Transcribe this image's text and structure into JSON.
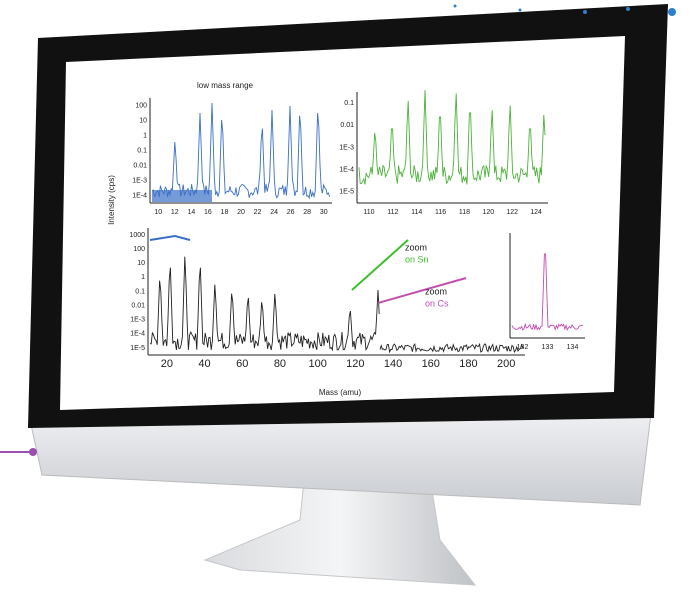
{
  "screen": {
    "top_left_plot": {
      "title": "low mass range",
      "x_ticks": [
        "10",
        "12",
        "14",
        "16",
        "18",
        "20",
        "22",
        "24",
        "26",
        "28",
        "30"
      ],
      "y_ticks": [
        "100",
        "10",
        "1",
        "0.1",
        "0.01",
        "1E-3",
        "1E-4"
      ]
    },
    "top_right_plot": {
      "x_ticks": [
        "110",
        "112",
        "114",
        "116",
        "118",
        "120",
        "122",
        "124"
      ],
      "y_ticks": [
        "0.1",
        "0.01",
        "1E-3",
        "1E-4",
        "1E-5"
      ]
    },
    "main_plot": {
      "y_label": "Intensity (cps)",
      "x_label": "Mass (amu)",
      "x_ticks": [
        "20",
        "40",
        "60",
        "80",
        "100",
        "120",
        "140",
        "160",
        "180",
        "200"
      ],
      "y_ticks": [
        "1000",
        "100",
        "10",
        "1",
        "0.1",
        "0.01",
        "1E-3",
        "1E-4",
        "1E-5"
      ]
    },
    "annotations": {
      "zoom_sn": "zoom",
      "zoom_sn_2": "on Sn",
      "zoom_cs": "zoom",
      "zoom_cs_2": "on Cs"
    },
    "inset_plot": {
      "x_ticks": [
        "132",
        "133",
        "134"
      ]
    }
  }
}
